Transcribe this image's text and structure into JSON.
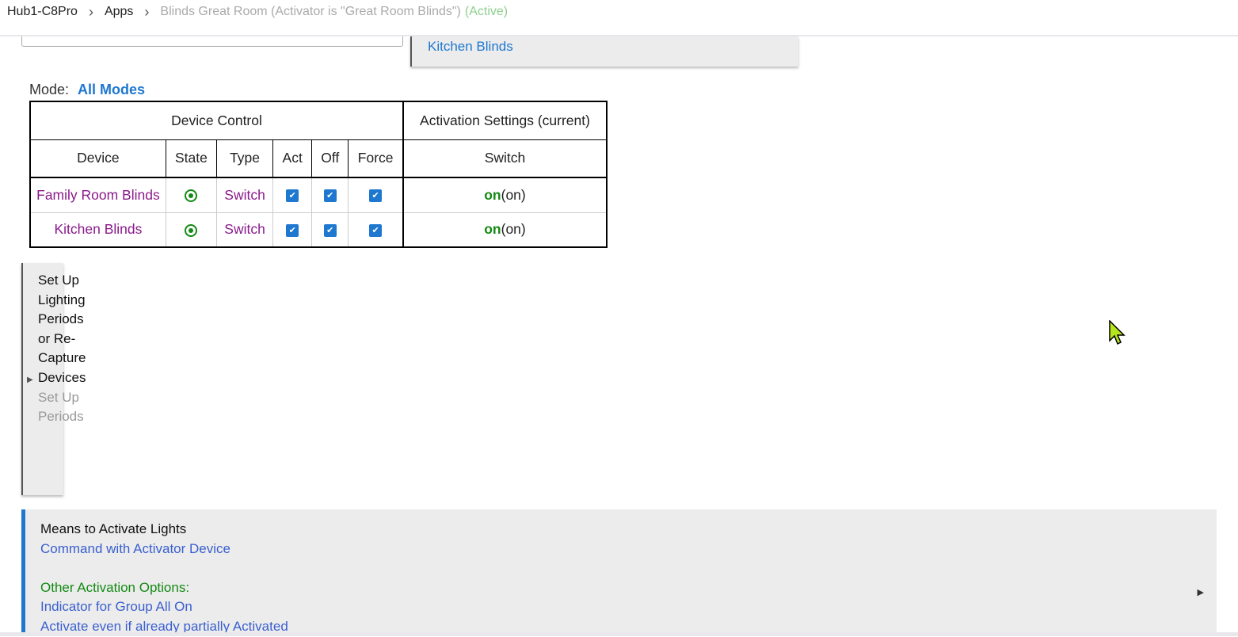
{
  "breadcrumb": {
    "hub": "Hub1-C8Pro",
    "apps": "Apps",
    "page": "Blinds Great Room (Activator is \"Great Room Blinds\")",
    "status": "(Active)",
    "separator": "›"
  },
  "selected_device_partial": "Kitchen Blinds",
  "mode": {
    "label": "Mode:",
    "value": "All Modes"
  },
  "table": {
    "group_headers": [
      "Device Control",
      "Activation Settings (current)"
    ],
    "columns": [
      "Device",
      "State",
      "Type",
      "Act",
      "Off",
      "Force",
      "Switch"
    ],
    "rows": [
      {
        "device": "Family Room Blinds",
        "state": "on",
        "type": "Switch",
        "act": true,
        "off": true,
        "force": true,
        "switch_value": "on",
        "switch_current": "(on)"
      },
      {
        "device": "Kitchen Blinds",
        "state": "on",
        "type": "Switch",
        "act": true,
        "off": true,
        "force": true,
        "switch_value": "on",
        "switch_current": "(on)"
      }
    ]
  },
  "setup_periods": {
    "title": "Set Up Lighting Periods or Re-Capture Devices",
    "subtitle": "Set Up Periods"
  },
  "means": {
    "title": "Means to Activate Lights",
    "value": "Command with Activator Device",
    "other_label": "Other Activation Options:",
    "options": [
      "Indicator for Group All On",
      "Activate even if already partially Activated"
    ]
  },
  "colors": {
    "accent": "#1e78d0",
    "device_link": "#8b1a8b",
    "on": "#138a13"
  }
}
